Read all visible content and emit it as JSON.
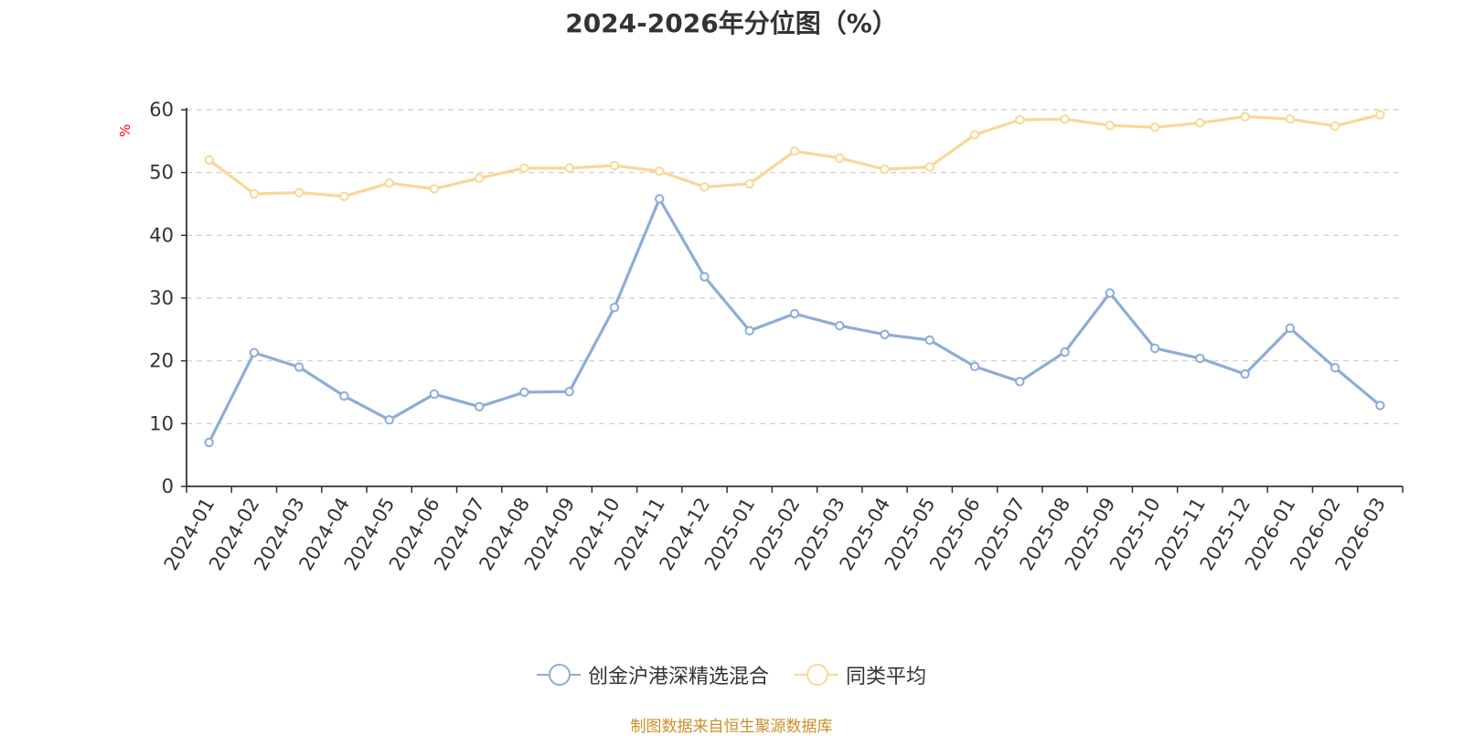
{
  "chart_data": {
    "type": "line",
    "title": "2024-2026年分位图（%）",
    "ylabel": "%",
    "xlabel": "",
    "ylim": [
      0,
      60
    ],
    "yticks": [
      0,
      10,
      20,
      30,
      40,
      50,
      60
    ],
    "grid": true,
    "legend_position": "bottom",
    "categories": [
      "2024-01",
      "2024-02",
      "2024-03",
      "2024-04",
      "2024-05",
      "2024-06",
      "2024-07",
      "2024-08",
      "2024-09",
      "2024-10",
      "2024-11",
      "2024-12",
      "2025-01",
      "2025-02",
      "2025-03",
      "2025-04",
      "2025-05",
      "2025-06",
      "2025-07",
      "2025-08",
      "2025-09",
      "2025-10",
      "2025-11",
      "2025-12",
      "2026-01",
      "2026-02",
      "2026-03"
    ],
    "series": [
      {
        "name": "创金沪港深精选混合",
        "color": "#8eacd8",
        "values": [
          7.0,
          21.3,
          19.0,
          14.4,
          10.6,
          14.7,
          12.7,
          15.0,
          15.1,
          28.5,
          45.8,
          33.4,
          24.8,
          27.5,
          25.6,
          24.2,
          23.3,
          19.1,
          16.7,
          21.4,
          30.8,
          22.0,
          20.4,
          17.9,
          25.2,
          18.9,
          12.9
        ]
      },
      {
        "name": "同类平均",
        "color": "#f9d797",
        "values": [
          52.0,
          46.6,
          46.8,
          46.2,
          48.3,
          47.4,
          49.1,
          50.7,
          50.7,
          51.1,
          50.2,
          47.7,
          48.2,
          53.4,
          52.3,
          50.5,
          50.9,
          56.0,
          58.4,
          58.5,
          57.5,
          57.2,
          57.9,
          58.9,
          58.5,
          57.4,
          59.2
        ]
      }
    ]
  },
  "source_note": "制图数据来自恒生聚源数据库",
  "colors": {
    "title": "#333333",
    "axis": "#333333",
    "grid": "#cccccc",
    "y_unit": "#ff0000",
    "source": "#c7902b"
  }
}
